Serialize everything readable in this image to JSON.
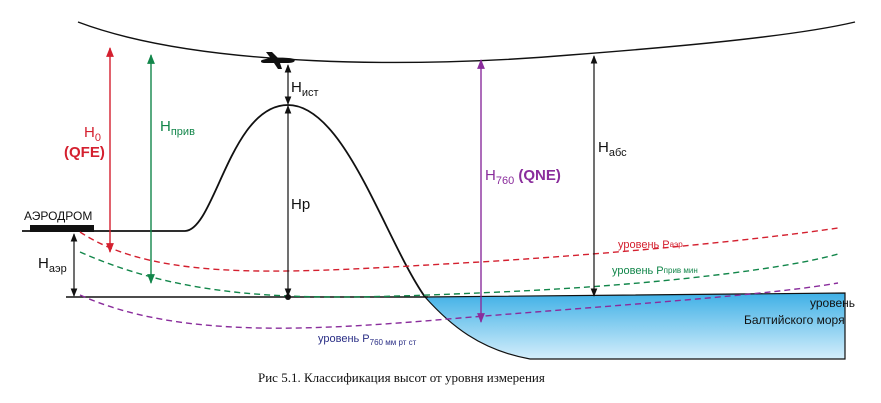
{
  "labels": {
    "aerodrome": "АЭРОДРОМ",
    "h0_main": "H",
    "h0_sub": "0",
    "qfe": "(QFE)",
    "hpriv_main": "H",
    "hpriv_sub": "прив",
    "hist_main": "H",
    "hist_sub": "ист",
    "hp": "Hр",
    "h760_main": "H",
    "h760_sub": "760",
    "qne": " (QNE)",
    "habs_main": "H",
    "habs_sub": "абс",
    "haer_main": "H",
    "haer_sub": "аэр",
    "level_aer_main": "уровень P",
    "level_aer_sub": "аэр",
    "level_priv_main": "уровень P",
    "level_priv_sub": "прив мин",
    "level_760_main": "уровень P",
    "level_760_sub": "760 мм рт ст",
    "sea_line1": "уровень",
    "sea_line2": "Балтийского моря"
  },
  "caption": "Рис 5.1. Классификация  высот от уровня измерения",
  "colors": {
    "red": "#d4202f",
    "green": "#12864a",
    "purple": "#8a2d9c",
    "navy": "#2b2f86",
    "black": "#111111",
    "sea_top": "#3fb0e6",
    "sea_bottom": "#d4eefb"
  }
}
